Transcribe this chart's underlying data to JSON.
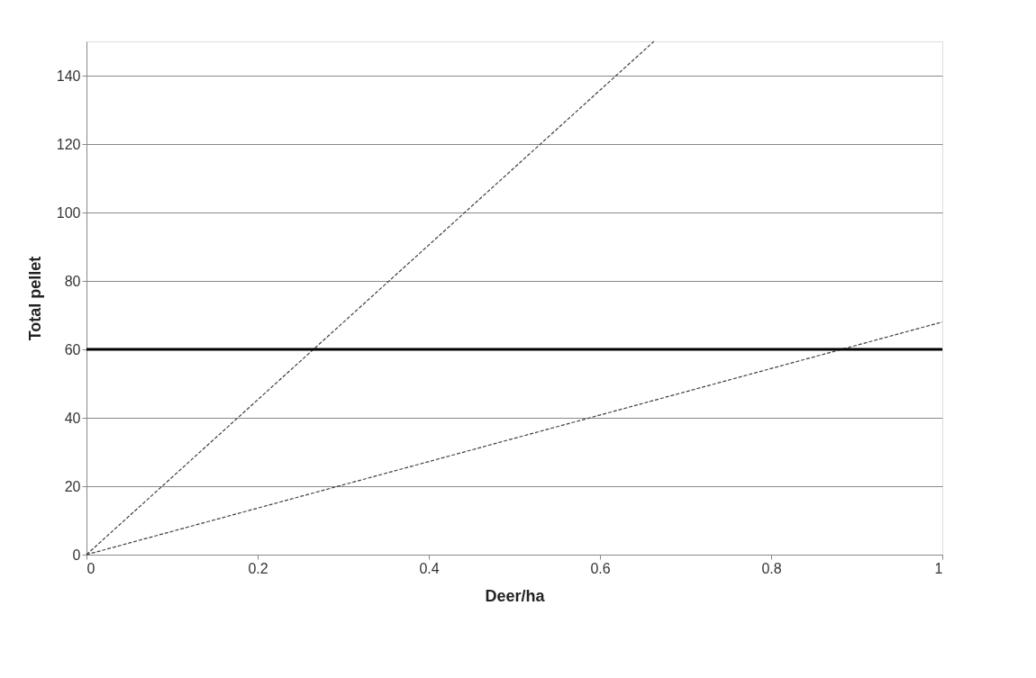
{
  "chart_data": {
    "type": "line",
    "xlabel": "Deer/ha",
    "ylabel": "Total pellet",
    "series": [
      {
        "color": "#404040",
        "x": [
          0,
          0.663
        ],
        "values": [
          0,
          150
        ]
      },
      {
        "color": "#404040",
        "x": [
          0,
          1
        ],
        "values": [
          0,
          68
        ]
      }
    ],
    "line_style": "dashed",
    "marker": "none",
    "xlim": [
      0,
      1
    ],
    "xticks": [
      0,
      0.2,
      0.4,
      0.6,
      0.8,
      1
    ],
    "ylim": [
      0,
      150
    ],
    "yticks": [
      0,
      20,
      40,
      60,
      80,
      100,
      120,
      140
    ],
    "grid": "y",
    "ref_lines": [
      {
        "axis": "y",
        "value": 60,
        "color": "#000000",
        "line_style": "solid"
      }
    ]
  }
}
